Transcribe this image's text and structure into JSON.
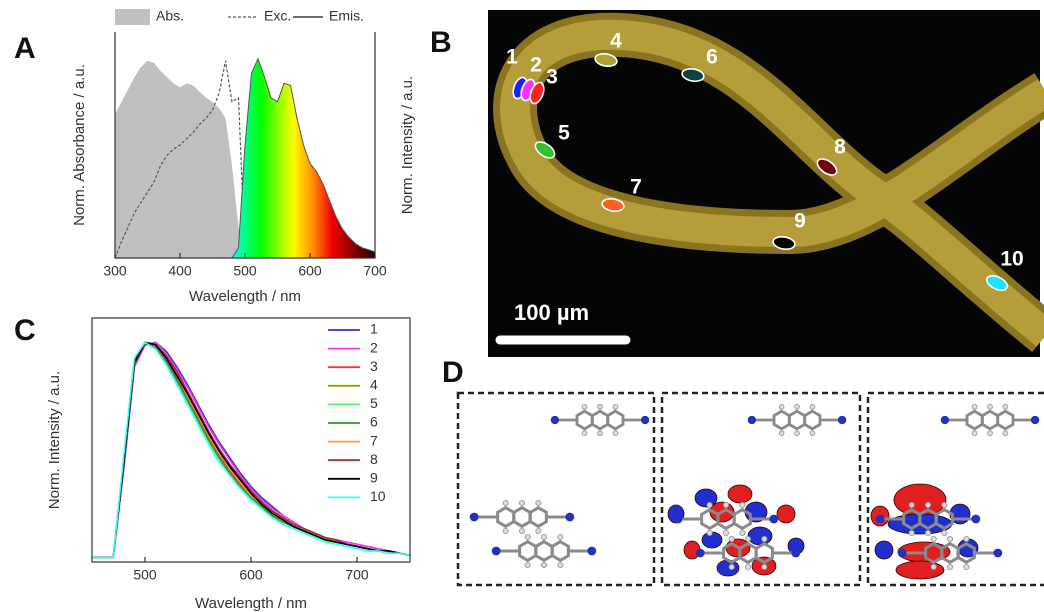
{
  "chart_data": [
    {
      "type": "line",
      "panel_label": "A",
      "x_label": "Wavelength / nm",
      "y_label": "Norm. Absorbance / a.u.",
      "y2_label": "Norm. Intensity / a.u.",
      "x": [
        300,
        310,
        320,
        330,
        340,
        350,
        360,
        370,
        380,
        390,
        400,
        410,
        420,
        430,
        440,
        450,
        460,
        470,
        480,
        490,
        500,
        510,
        520,
        530,
        540,
        550,
        560,
        570,
        580,
        590,
        600,
        610,
        620,
        630,
        640,
        650,
        660,
        670,
        680,
        690,
        700
      ],
      "xlim": [
        300,
        700
      ],
      "xticks": [
        300,
        400,
        500,
        600,
        700
      ],
      "ylim": [
        0,
        1.1
      ],
      "legend": "top",
      "series": [
        {
          "name": "Abs.",
          "color": "#c0c0c0",
          "fill": true,
          "values": [
            0.7,
            0.76,
            0.82,
            0.88,
            0.93,
            0.96,
            0.95,
            0.91,
            0.88,
            0.85,
            0.83,
            0.85,
            0.84,
            0.81,
            0.78,
            0.76,
            0.73,
            0.68,
            0.45,
            0.15,
            0.02,
            null,
            null,
            null,
            null,
            null,
            null,
            null,
            null,
            null,
            null,
            null,
            null,
            null,
            null,
            null,
            null,
            null,
            null,
            null,
            null
          ]
        },
        {
          "name": "Exc.",
          "color": "#555555",
          "dash": true,
          "values": [
            0.0,
            0.08,
            0.15,
            0.22,
            0.27,
            0.32,
            0.37,
            0.45,
            0.5,
            0.53,
            0.55,
            0.58,
            0.61,
            0.65,
            0.68,
            0.72,
            0.8,
            0.96,
            0.76,
            0.78,
            0.02,
            null,
            null,
            null,
            null,
            null,
            null,
            null,
            null,
            null,
            null,
            null,
            null,
            null,
            null,
            null,
            null,
            null,
            null,
            null,
            null
          ]
        },
        {
          "name": "Emis.",
          "color": "#555555",
          "spectrum_fill": true,
          "values": [
            null,
            null,
            null,
            null,
            null,
            null,
            null,
            null,
            null,
            null,
            null,
            null,
            null,
            null,
            null,
            null,
            null,
            null,
            0,
            0.05,
            0.55,
            0.9,
            0.97,
            0.88,
            0.78,
            0.76,
            0.85,
            0.84,
            0.68,
            0.55,
            0.46,
            0.42,
            0.36,
            0.28,
            0.2,
            0.14,
            0.1,
            0.07,
            0.05,
            0.04,
            0.03
          ]
        }
      ]
    },
    {
      "type": "line",
      "panel_label": "C",
      "x_label": "Wavelength  / nm",
      "y_label": "Norm. Intensity / a.u.",
      "x": [
        450,
        460,
        470,
        480,
        490,
        500,
        510,
        520,
        530,
        540,
        550,
        560,
        570,
        580,
        590,
        600,
        610,
        620,
        630,
        640,
        650,
        660,
        670,
        680,
        690,
        700,
        710,
        720,
        730,
        740,
        750
      ],
      "xlim": [
        450,
        750
      ],
      "xticks": [
        500,
        600,
        700
      ],
      "ylim": [
        0,
        1.1
      ],
      "legend": "upper right",
      "series": [
        {
          "name": "1",
          "color": "#3333cc",
          "values": [
            0.02,
            0.02,
            0.02,
            0.42,
            0.88,
            0.98,
            0.99,
            0.95,
            0.88,
            0.8,
            0.71,
            0.62,
            0.54,
            0.47,
            0.4,
            0.34,
            0.29,
            0.25,
            0.21,
            0.18,
            0.15,
            0.13,
            0.11,
            0.1,
            0.09,
            0.08,
            0.07,
            0.06,
            0.05,
            0.04,
            0.03
          ]
        },
        {
          "name": "2",
          "color": "#ff33ff",
          "values": [
            0.02,
            0.02,
            0.02,
            0.43,
            0.88,
            0.98,
            0.99,
            0.94,
            0.87,
            0.79,
            0.7,
            0.61,
            0.53,
            0.46,
            0.39,
            0.33,
            0.28,
            0.24,
            0.21,
            0.18,
            0.15,
            0.13,
            0.11,
            0.1,
            0.09,
            0.08,
            0.07,
            0.06,
            0.05,
            0.04,
            0.03
          ]
        },
        {
          "name": "3",
          "color": "#ff3333",
          "values": [
            0.02,
            0.02,
            0.02,
            0.46,
            0.91,
            0.99,
            0.97,
            0.91,
            0.83,
            0.74,
            0.65,
            0.56,
            0.48,
            0.41,
            0.35,
            0.3,
            0.25,
            0.21,
            0.18,
            0.16,
            0.14,
            0.12,
            0.1,
            0.09,
            0.08,
            0.07,
            0.06,
            0.05,
            0.04,
            0.04,
            0.03
          ]
        },
        {
          "name": "4",
          "color": "#999900",
          "values": [
            0.02,
            0.02,
            0.02,
            0.44,
            0.9,
            0.99,
            0.98,
            0.92,
            0.85,
            0.76,
            0.67,
            0.58,
            0.5,
            0.43,
            0.37,
            0.31,
            0.27,
            0.23,
            0.2,
            0.17,
            0.15,
            0.13,
            0.11,
            0.09,
            0.08,
            0.07,
            0.06,
            0.05,
            0.05,
            0.04,
            0.03
          ]
        },
        {
          "name": "5",
          "color": "#66ee66",
          "values": [
            0.02,
            0.02,
            0.02,
            0.47,
            0.92,
            0.99,
            0.96,
            0.89,
            0.81,
            0.72,
            0.63,
            0.54,
            0.46,
            0.39,
            0.33,
            0.28,
            0.24,
            0.2,
            0.17,
            0.15,
            0.13,
            0.11,
            0.09,
            0.08,
            0.07,
            0.06,
            0.05,
            0.05,
            0.04,
            0.04,
            0.03
          ]
        },
        {
          "name": "6",
          "color": "#339933",
          "values": [
            0.02,
            0.02,
            0.02,
            0.46,
            0.91,
            0.99,
            0.97,
            0.9,
            0.82,
            0.73,
            0.64,
            0.55,
            0.47,
            0.4,
            0.34,
            0.29,
            0.25,
            0.21,
            0.18,
            0.16,
            0.14,
            0.12,
            0.1,
            0.09,
            0.08,
            0.07,
            0.06,
            0.05,
            0.04,
            0.04,
            0.03
          ]
        },
        {
          "name": "7",
          "color": "#ff9933",
          "values": [
            0.02,
            0.02,
            0.02,
            0.45,
            0.9,
            0.99,
            0.98,
            0.92,
            0.84,
            0.75,
            0.66,
            0.57,
            0.49,
            0.42,
            0.36,
            0.3,
            0.26,
            0.22,
            0.19,
            0.16,
            0.14,
            0.12,
            0.1,
            0.09,
            0.08,
            0.07,
            0.06,
            0.05,
            0.05,
            0.04,
            0.03
          ]
        },
        {
          "name": "8",
          "color": "#993333",
          "values": [
            0.02,
            0.02,
            0.02,
            0.44,
            0.89,
            0.98,
            0.98,
            0.93,
            0.86,
            0.77,
            0.68,
            0.59,
            0.51,
            0.44,
            0.38,
            0.32,
            0.27,
            0.23,
            0.2,
            0.17,
            0.15,
            0.13,
            0.11,
            0.1,
            0.08,
            0.07,
            0.06,
            0.05,
            0.05,
            0.04,
            0.03
          ]
        },
        {
          "name": "9",
          "color": "#000000",
          "values": [
            0.02,
            0.02,
            0.02,
            0.45,
            0.9,
            0.99,
            0.98,
            0.92,
            0.84,
            0.76,
            0.67,
            0.58,
            0.5,
            0.43,
            0.37,
            0.31,
            0.26,
            0.22,
            0.19,
            0.16,
            0.14,
            0.12,
            0.1,
            0.09,
            0.08,
            0.07,
            0.06,
            0.05,
            0.05,
            0.04,
            0.03
          ]
        },
        {
          "name": "10",
          "color": "#33ffff",
          "values": [
            0.02,
            0.02,
            0.02,
            0.48,
            0.92,
            0.99,
            0.96,
            0.89,
            0.8,
            0.71,
            0.62,
            0.53,
            0.45,
            0.39,
            0.33,
            0.28,
            0.24,
            0.2,
            0.17,
            0.15,
            0.13,
            0.11,
            0.09,
            0.08,
            0.07,
            0.06,
            0.05,
            0.05,
            0.04,
            0.04,
            0.03
          ]
        }
      ]
    }
  ],
  "micrograph": {
    "panel_label": "B",
    "scale_bar": "100 µm",
    "rois": [
      {
        "label": "1",
        "color": "#2020ff"
      },
      {
        "label": "2",
        "color": "#ff30ff"
      },
      {
        "label": "3",
        "color": "#ff2020"
      },
      {
        "label": "4",
        "color": "#b0a030"
      },
      {
        "label": "5",
        "color": "#30c030"
      },
      {
        "label": "6",
        "color": "#104040"
      },
      {
        "label": "7",
        "color": "#ff6020"
      },
      {
        "label": "8",
        "color": "#700010"
      },
      {
        "label": "9",
        "color": "#000000"
      },
      {
        "label": "10",
        "color": "#20e0ff"
      }
    ]
  },
  "orbital_diagram": {
    "panel_label": "D"
  }
}
